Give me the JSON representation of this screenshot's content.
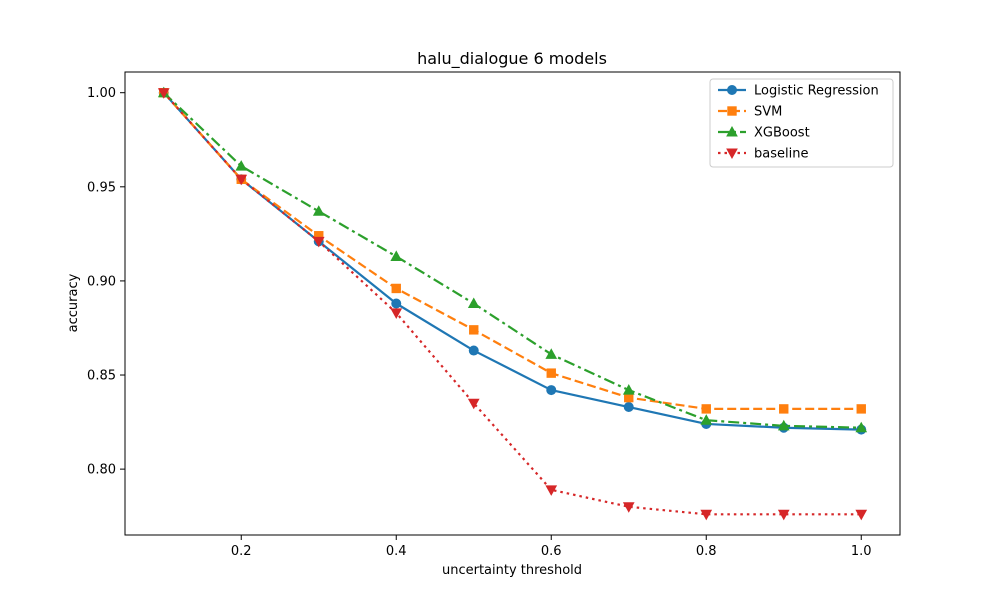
{
  "chart_data": {
    "type": "line",
    "title": "halu_dialogue 6 models",
    "xlabel": "uncertainty threshold",
    "ylabel": "accuracy",
    "xlim": [
      0.05,
      1.05
    ],
    "ylim": [
      0.765,
      1.011
    ],
    "grid": false,
    "legend_position": "top-right",
    "x": [
      0.1,
      0.2,
      0.3,
      0.4,
      0.5,
      0.6,
      0.7,
      0.8,
      0.9,
      1.0
    ],
    "x_ticks": [
      "0.2",
      "0.4",
      "0.6",
      "0.8",
      "1.0"
    ],
    "x_tick_values": [
      0.2,
      0.4,
      0.6,
      0.8,
      1.0
    ],
    "y_ticks": [
      "0.80",
      "0.85",
      "0.90",
      "0.95",
      "1.00"
    ],
    "y_tick_values": [
      0.8,
      0.85,
      0.9,
      0.95,
      1.0
    ],
    "series": [
      {
        "name": "Logistic Regression",
        "color": "#1f77b4",
        "marker": "circle",
        "line_style": "solid",
        "values": [
          1.0,
          0.954,
          0.921,
          0.888,
          0.863,
          0.842,
          0.833,
          0.824,
          0.822,
          0.821
        ]
      },
      {
        "name": "SVM",
        "color": "#ff7f0e",
        "marker": "square",
        "line_style": "dashed",
        "values": [
          1.0,
          0.954,
          0.924,
          0.896,
          0.874,
          0.851,
          0.838,
          0.832,
          0.832,
          0.832
        ]
      },
      {
        "name": "XGBoost",
        "color": "#2ca02c",
        "marker": "triangle-up",
        "line_style": "dash-dot",
        "values": [
          1.0,
          0.961,
          0.937,
          0.913,
          0.888,
          0.861,
          0.842,
          0.826,
          0.823,
          0.822
        ]
      },
      {
        "name": "baseline",
        "color": "#d62728",
        "marker": "triangle-down",
        "line_style": "dotted",
        "values": [
          1.0,
          0.954,
          0.921,
          0.883,
          0.835,
          0.789,
          0.78,
          0.776,
          0.776,
          0.776
        ]
      }
    ]
  }
}
